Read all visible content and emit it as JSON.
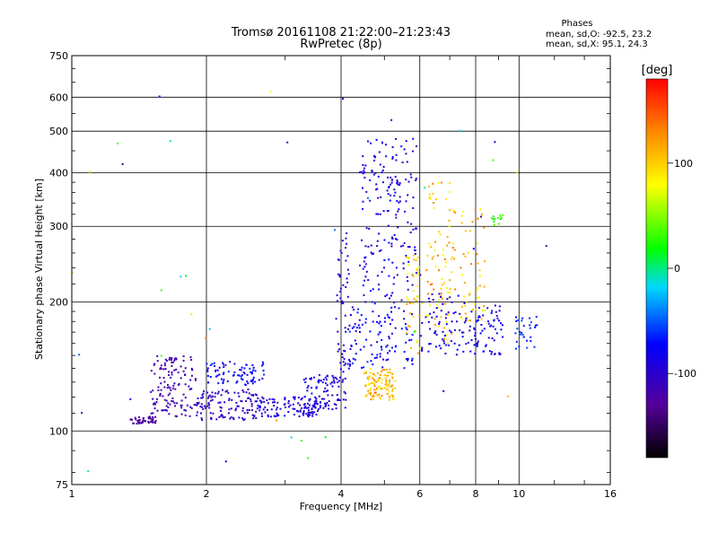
{
  "chart_data": {
    "type": "scatter",
    "title": "Tromsø 20161108 21:22:00–21:23:43",
    "subtitle": "RwPretec (8p)",
    "legend_title": "Phases",
    "legend_lines": [
      "mean, sd,O: -92.5, 23.2",
      "mean, sd,X:  95.1, 24.3"
    ],
    "xlabel": "Frequency [MHz]",
    "ylabel": "Stationary phase Virtual Height [km]",
    "x_scale": "log",
    "y_scale": "log",
    "xlim": [
      1,
      16
    ],
    "ylim": [
      75,
      750
    ],
    "x_ticks": [
      1,
      2,
      4,
      6,
      8,
      10,
      16
    ],
    "x_tick_labels": [
      "1",
      "2",
      "4",
      "6",
      "8",
      "10",
      "16"
    ],
    "y_ticks": [
      75,
      100,
      200,
      300,
      400,
      500,
      600,
      750
    ],
    "y_tick_labels": [
      "75",
      "100",
      "200",
      "300",
      "400",
      "500",
      "600",
      "750"
    ],
    "grid": true,
    "colorbar": {
      "label": "[deg]",
      "range": [
        -180,
        180
      ],
      "ticks": [
        100,
        0,
        -100
      ],
      "tick_labels": [
        "100",
        "0",
        "-100"
      ]
    },
    "clusters": [
      {
        "x": [
          1.35,
          1.55
        ],
        "y": [
          104,
          108
        ],
        "phase": [
          -130,
          -115
        ],
        "n": 45
      },
      {
        "x": [
          1.5,
          1.9
        ],
        "y": [
          108,
          150
        ],
        "phase": [
          -130,
          -105
        ],
        "n": 130
      },
      {
        "x": [
          1.9,
          2.6
        ],
        "y": [
          106,
          125
        ],
        "phase": [
          -115,
          -95
        ],
        "n": 120
      },
      {
        "x": [
          2.0,
          2.7
        ],
        "y": [
          128,
          145
        ],
        "phase": [
          -95,
          -60
        ],
        "n": 80
      },
      {
        "x": [
          2.6,
          3.6
        ],
        "y": [
          108,
          120
        ],
        "phase": [
          -105,
          -80
        ],
        "n": 110
      },
      {
        "x": [
          3.3,
          4.1
        ],
        "y": [
          112,
          135
        ],
        "phase": [
          -100,
          -75
        ],
        "n": 90
      },
      {
        "x": [
          3.9,
          4.2
        ],
        "y": [
          130,
          300
        ],
        "phase": [
          -110,
          -80
        ],
        "n": 60
      },
      {
        "x": [
          4.1,
          5.8
        ],
        "y": [
          140,
          200
        ],
        "phase": [
          -105,
          -60
        ],
        "n": 110
      },
      {
        "x": [
          4.4,
          5.9
        ],
        "y": [
          200,
          480
        ],
        "phase": [
          -110,
          -70
        ],
        "n": 190
      },
      {
        "x": [
          4.5,
          5.3
        ],
        "y": [
          118,
          140
        ],
        "phase": [
          80,
          140
        ],
        "n": 110
      },
      {
        "x": [
          5.6,
          6.0
        ],
        "y": [
          150,
          260
        ],
        "phase": [
          60,
          130
        ],
        "n": 40
      },
      {
        "x": [
          6.2,
          7.2
        ],
        "y": [
          160,
          380
        ],
        "phase": [
          70,
          140
        ],
        "n": 90
      },
      {
        "x": [
          6.0,
          7.6
        ],
        "y": [
          150,
          210
        ],
        "phase": [
          -110,
          -70
        ],
        "n": 70
      },
      {
        "x": [
          7.4,
          8.4
        ],
        "y": [
          180,
          330
        ],
        "phase": [
          70,
          140
        ],
        "n": 50
      },
      {
        "x": [
          7.6,
          9.2
        ],
        "y": [
          150,
          200
        ],
        "phase": [
          -100,
          -70
        ],
        "n": 70
      },
      {
        "x": [
          8.7,
          9.2
        ],
        "y": [
          300,
          320
        ],
        "phase": [
          10,
          40
        ],
        "n": 12
      },
      {
        "x": [
          9.8,
          11.0
        ],
        "y": [
          155,
          185
        ],
        "phase": [
          -70,
          -50
        ],
        "n": 30
      },
      {
        "x": [
          1.0,
          12.5
        ],
        "y": [
          80,
          700
        ],
        "phase": [
          -150,
          150
        ],
        "n": 45
      }
    ]
  }
}
